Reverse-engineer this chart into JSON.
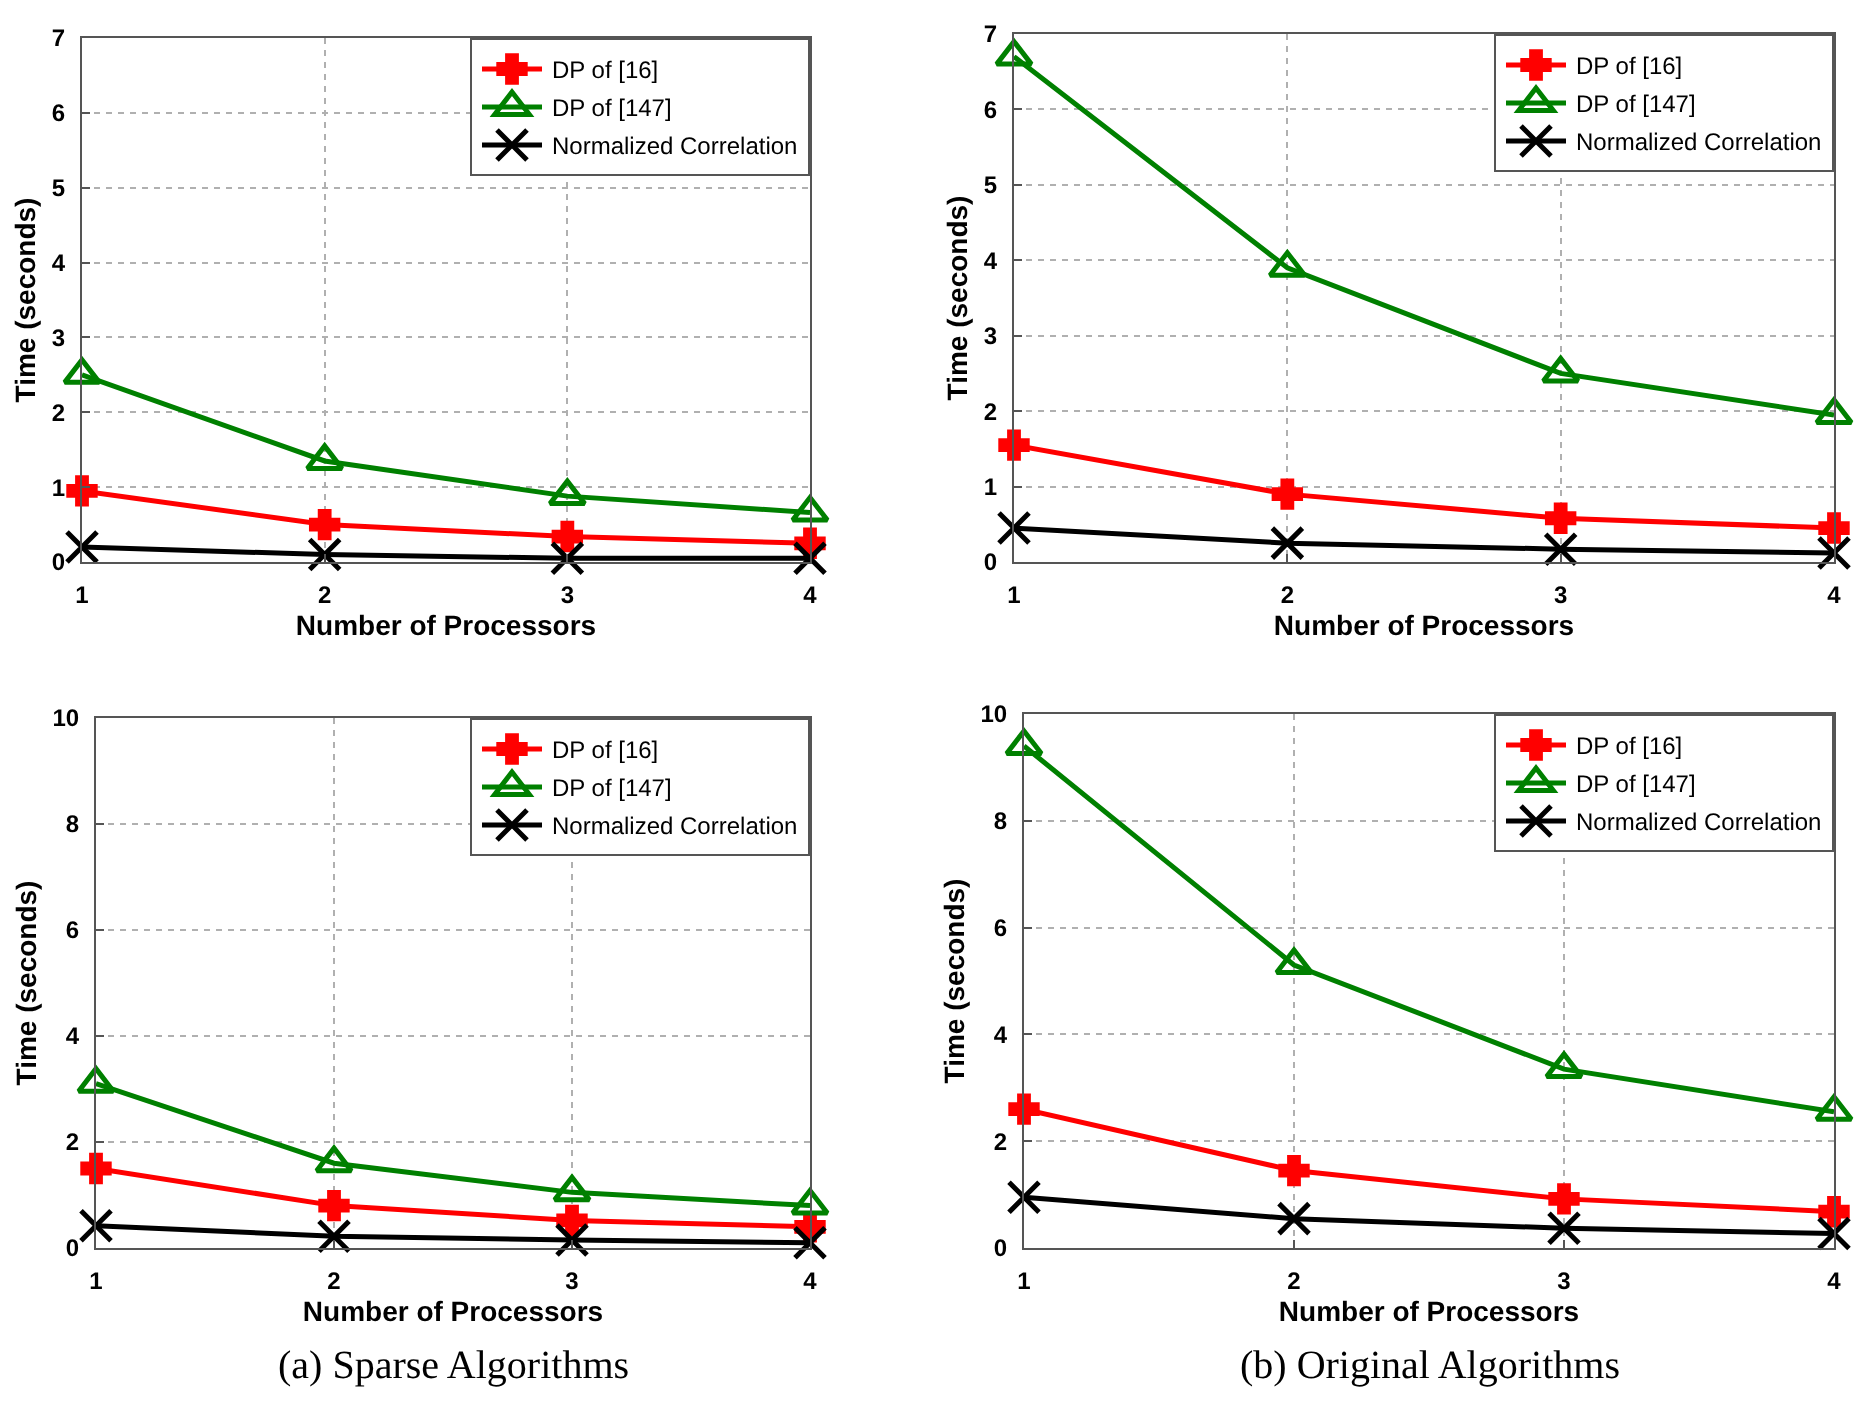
{
  "chart_data": [
    {
      "type": "line",
      "xlabel": "Number of Processors",
      "ylabel": "Time (seconds)",
      "x": [
        1,
        2,
        3,
        4
      ],
      "xlim": [
        1,
        4
      ],
      "xticks": [
        1,
        2,
        3,
        4
      ],
      "ylim": [
        0,
        7
      ],
      "yticks": [
        0,
        1,
        2,
        3,
        4,
        5,
        6,
        7
      ],
      "grid": true,
      "legend": "top right",
      "line_style": "solid",
      "series": [
        {
          "name": "DP of [16]",
          "color": "#ff0000",
          "marker": "cross",
          "values": [
            0.95,
            0.5,
            0.34,
            0.25
          ]
        },
        {
          "name": "DP of [147]",
          "color": "#008000",
          "marker": "triangle",
          "values": [
            2.5,
            1.35,
            0.88,
            0.66
          ]
        },
        {
          "name": "Normalized Correlation",
          "color": "#000000",
          "marker": "x",
          "values": [
            0.2,
            0.1,
            0.05,
            0.05
          ]
        }
      ]
    },
    {
      "type": "line",
      "xlabel": "Number of Processors",
      "ylabel": "Time (seconds)",
      "x": [
        1,
        2,
        3,
        4
      ],
      "xlim": [
        1,
        4
      ],
      "xticks": [
        1,
        2,
        3,
        4
      ],
      "ylim": [
        0,
        7
      ],
      "yticks": [
        0,
        1,
        2,
        3,
        4,
        5,
        6,
        7
      ],
      "grid": true,
      "legend": "top right",
      "line_style": "solid",
      "series": [
        {
          "name": "DP of [16]",
          "color": "#ff0000",
          "marker": "cross",
          "values": [
            1.55,
            0.9,
            0.58,
            0.45
          ]
        },
        {
          "name": "DP of [147]",
          "color": "#008000",
          "marker": "triangle",
          "values": [
            6.7,
            3.9,
            2.5,
            1.95
          ]
        },
        {
          "name": "Normalized Correlation",
          "color": "#000000",
          "marker": "x",
          "values": [
            0.45,
            0.25,
            0.17,
            0.12
          ]
        }
      ]
    },
    {
      "type": "line",
      "xlabel": "Number of Processors",
      "ylabel": "Time (seconds)",
      "x": [
        1,
        2,
        3,
        4
      ],
      "xlim": [
        1,
        4
      ],
      "xticks": [
        1,
        2,
        3,
        4
      ],
      "ylim": [
        0,
        10
      ],
      "yticks": [
        0,
        2,
        4,
        6,
        8,
        10
      ],
      "grid": true,
      "legend": "top right",
      "line_style": "solid",
      "annotations": [
        "(a) Sparse Algorithms"
      ],
      "series": [
        {
          "name": "DP of [16]",
          "color": "#ff0000",
          "marker": "cross",
          "values": [
            1.5,
            0.8,
            0.52,
            0.4
          ]
        },
        {
          "name": "DP of [147]",
          "color": "#008000",
          "marker": "triangle",
          "values": [
            3.1,
            1.6,
            1.05,
            0.8
          ]
        },
        {
          "name": "Normalized Correlation",
          "color": "#000000",
          "marker": "x",
          "values": [
            0.42,
            0.22,
            0.15,
            0.1
          ]
        }
      ]
    },
    {
      "type": "line",
      "xlabel": "Number of Processors",
      "ylabel": "Time (seconds)",
      "x": [
        1,
        2,
        3,
        4
      ],
      "xlim": [
        1,
        4
      ],
      "xticks": [
        1,
        2,
        3,
        4
      ],
      "ylim": [
        0,
        10
      ],
      "yticks": [
        0,
        2,
        4,
        6,
        8,
        10
      ],
      "grid": true,
      "legend": "top right",
      "line_style": "solid",
      "annotations": [
        "(b) Original Algorithms"
      ],
      "series": [
        {
          "name": "DP of [16]",
          "color": "#ff0000",
          "marker": "cross",
          "values": [
            2.6,
            1.45,
            0.92,
            0.68
          ]
        },
        {
          "name": "DP of [147]",
          "color": "#008000",
          "marker": "triangle",
          "values": [
            9.4,
            5.3,
            3.35,
            2.55
          ]
        },
        {
          "name": "Normalized Correlation",
          "color": "#000000",
          "marker": "x",
          "values": [
            0.95,
            0.55,
            0.37,
            0.27
          ]
        }
      ]
    }
  ]
}
